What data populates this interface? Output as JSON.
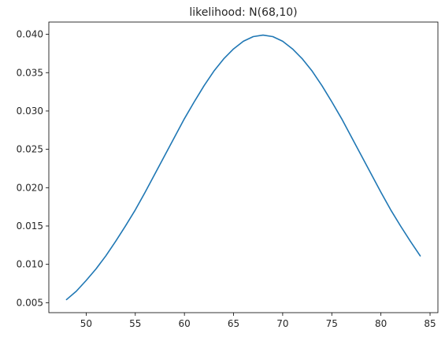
{
  "chart_data": {
    "type": "line",
    "title": "likelihood: N(68,10)",
    "xlabel": "",
    "ylabel": "",
    "xlim": [
      46.2,
      85.8
    ],
    "ylim": [
      0.0037,
      0.0416
    ],
    "xticks": [
      50,
      55,
      60,
      65,
      70,
      75,
      80,
      85
    ],
    "yticks": [
      0.005,
      0.01,
      0.015,
      0.02,
      0.025,
      0.03,
      0.035,
      0.04
    ],
    "ytick_labels": [
      "0.005",
      "0.010",
      "0.015",
      "0.020",
      "0.025",
      "0.030",
      "0.035",
      "0.040"
    ],
    "grid": false,
    "line_color": "#1f77b4",
    "series": [
      {
        "x": [
          48,
          49,
          50,
          51,
          52,
          53,
          54,
          55,
          56,
          57,
          58,
          59,
          60,
          61,
          62,
          63,
          64,
          65,
          66,
          67,
          68,
          69,
          70,
          71,
          72,
          73,
          74,
          75,
          76,
          77,
          78,
          79,
          80,
          81,
          82,
          83,
          84
        ],
        "values": [
          0.0054,
          0.0065,
          0.0079,
          0.0094,
          0.0111,
          0.013,
          0.015,
          0.0171,
          0.0194,
          0.0218,
          0.0242,
          0.0266,
          0.029,
          0.0312,
          0.0333,
          0.0352,
          0.0368,
          0.0381,
          0.0391,
          0.0397,
          0.0399,
          0.0397,
          0.0391,
          0.0381,
          0.0368,
          0.0352,
          0.0333,
          0.0312,
          0.029,
          0.0266,
          0.0242,
          0.0218,
          0.0194,
          0.0171,
          0.015,
          0.013,
          0.0111
        ]
      }
    ]
  }
}
